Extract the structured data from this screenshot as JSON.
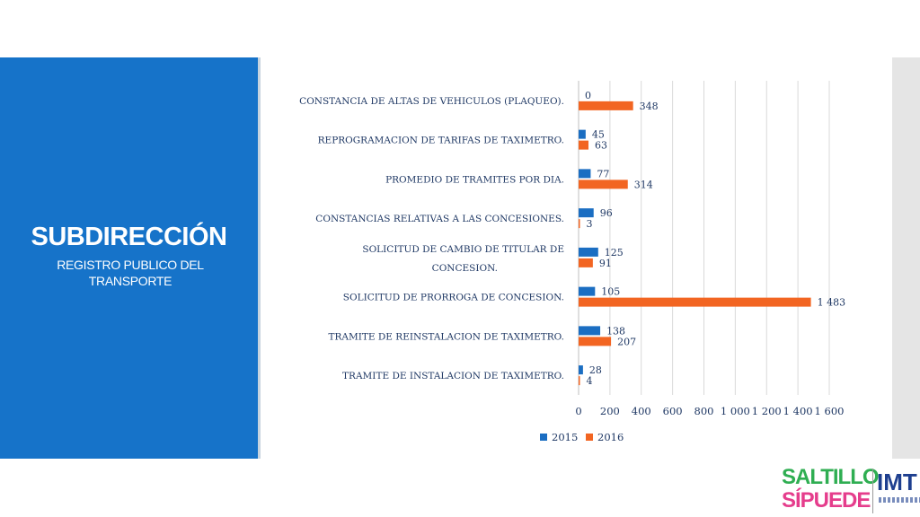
{
  "sidebar": {
    "title": "SUBDIRECCIÓN",
    "subtitle": "REGISTRO PUBLICO DEL TRANSPORTE"
  },
  "logo": {
    "line1": "SALTILLO",
    "line2": "SÍPUEDE",
    "agency": "IMT"
  },
  "colors": {
    "panel": "#1673c9",
    "series_2015": "#1b6ec2",
    "series_2016": "#f26522"
  },
  "chart_data": {
    "type": "bar",
    "orientation": "horizontal",
    "categories": [
      [
        "CONSTANCIA DE ALTAS DE VEHICULOS (PLAQUEO)."
      ],
      [
        "REPROGRAMACION DE TARIFAS DE TAXIMETRO."
      ],
      [
        "PROMEDIO DE TRAMITES POR DIA."
      ],
      [
        "CONSTANCIAS RELATIVAS A LAS CONCESIONES."
      ],
      [
        "SOLICITUD DE CAMBIO DE TITULAR DE",
        "CONCESION."
      ],
      [
        "SOLICITUD DE PRORROGA DE CONCESION."
      ],
      [
        "TRAMITE DE REINSTALACION DE TAXIMETRO."
      ],
      [
        "TRAMITE DE INSTALACION DE TAXIMETRO."
      ]
    ],
    "series": [
      {
        "name": "2015",
        "color": "#1b6ec2",
        "values": [
          0,
          45,
          77,
          96,
          125,
          105,
          138,
          28
        ],
        "labels": [
          "0",
          "45",
          "77",
          "96",
          "125",
          "105",
          "138",
          "28"
        ]
      },
      {
        "name": "2016",
        "color": "#f26522",
        "values": [
          348,
          63,
          314,
          3,
          91,
          1483,
          207,
          4
        ],
        "labels": [
          "348",
          "63",
          "314",
          "3",
          "91",
          "1 483",
          "207",
          "4"
        ]
      }
    ],
    "xlim": [
      0,
      1600
    ],
    "xticks": [
      0,
      200,
      400,
      600,
      800,
      1000,
      1200,
      1400,
      1600
    ],
    "xtick_labels": [
      "0",
      "200",
      "400",
      "600",
      "800",
      "1 000",
      "1 200",
      "1 400",
      "1 600"
    ],
    "grid": "vertical",
    "legend": "bottom"
  }
}
